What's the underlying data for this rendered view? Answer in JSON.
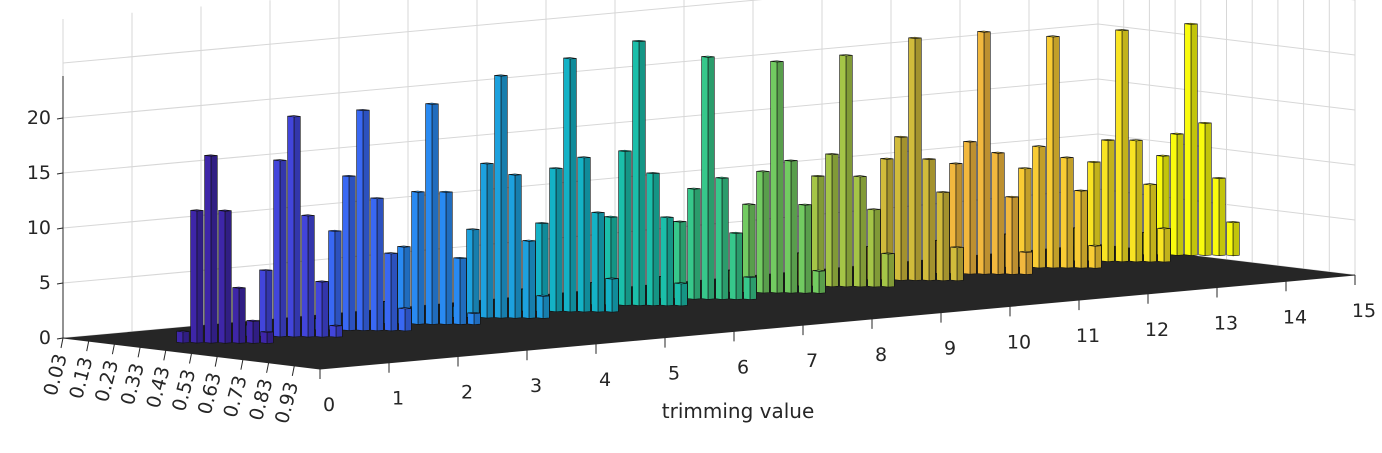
{
  "chart_data": {
    "type": "3d-bar-histogram",
    "title": "",
    "xlabel": "",
    "ylabel": "trimming value",
    "zlabel": "",
    "x_tick_labels": [
      "0.03",
      "0.13",
      "0.23",
      "0.33",
      "0.43",
      "0.53",
      "0.63",
      "0.73",
      "0.83",
      "0.93"
    ],
    "y_tick_labels": [
      "0",
      "1",
      "2",
      "3",
      "4",
      "5",
      "6",
      "7",
      "8",
      "9",
      "10",
      "11",
      "12",
      "13",
      "14",
      "15"
    ],
    "z_tick_labels": [
      "0",
      "5",
      "10",
      "15",
      "20"
    ],
    "zlim": [
      0,
      24
    ],
    "grid": true,
    "colormap": "parula",
    "colormap_stops": [
      "#3e26a8",
      "#4352f0",
      "#2c86f6",
      "#1aa5da",
      "#10bcb7",
      "#37c88b",
      "#89cc50",
      "#cbbb3a",
      "#f8b83f",
      "#f9db2c",
      "#f9fb0e"
    ],
    "floor_color": "#262626",
    "series": [
      {
        "name": "1",
        "values": [
          1,
          12,
          17,
          12,
          5,
          2,
          1
        ]
      },
      {
        "name": "2",
        "values": [
          1,
          6,
          16,
          20,
          11,
          5,
          1
        ]
      },
      {
        "name": "3",
        "values": [
          1,
          9,
          14,
          20,
          12,
          7,
          2
        ]
      },
      {
        "name": "4",
        "values": [
          2,
          7,
          12,
          20,
          12,
          6,
          1
        ]
      },
      {
        "name": "5",
        "values": [
          1,
          8,
          14,
          22,
          13,
          7,
          2
        ]
      },
      {
        "name": "6",
        "values": [
          2,
          8,
          13,
          23,
          14,
          9,
          3
        ]
      },
      {
        "name": "7",
        "values": [
          2,
          8,
          14,
          24,
          12,
          8,
          2
        ]
      },
      {
        "name": "8",
        "values": [
          2,
          7,
          10,
          22,
          11,
          6,
          2
        ]
      },
      {
        "name": "9",
        "values": [
          2,
          8,
          11,
          21,
          12,
          8,
          2
        ]
      },
      {
        "name": "10",
        "values": [
          3,
          10,
          12,
          21,
          10,
          7,
          3
        ]
      },
      {
        "name": "11",
        "values": [
          3,
          11,
          13,
          22,
          11,
          8,
          3
        ]
      },
      {
        "name": "12",
        "values": [
          3,
          10,
          12,
          22,
          11,
          7,
          2
        ]
      },
      {
        "name": "13",
        "values": [
          3,
          9,
          11,
          21,
          10,
          7,
          2
        ]
      },
      {
        "name": "14",
        "values": [
          3,
          9,
          11,
          21,
          11,
          7,
          3
        ]
      },
      {
        "name": "15",
        "values": [
          2,
          9,
          11,
          21,
          12,
          7,
          3
        ]
      }
    ]
  }
}
